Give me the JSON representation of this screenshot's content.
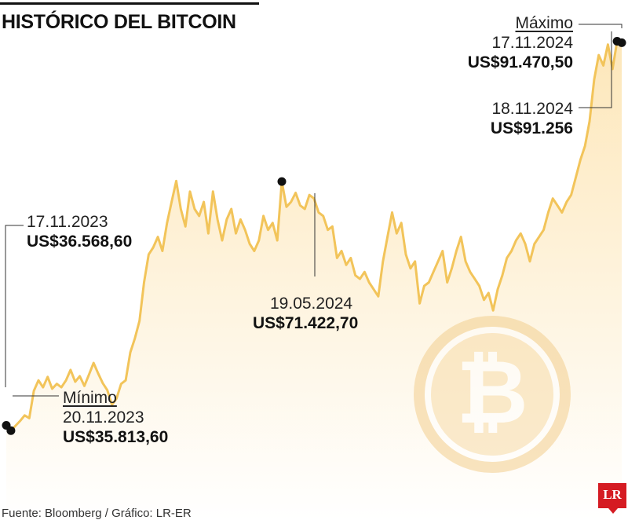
{
  "title": "HISTÓRICO DEL BITCOIN",
  "source": "Fuente: Bloomberg / Gráfico: LR-ER",
  "logo_text": "LR",
  "colors": {
    "line": "#f2c45a",
    "fill_top": "#fde7ba",
    "marker": "#111111",
    "watermark": "#f5d9a8",
    "logo": "#d51b22"
  },
  "icons": {
    "watermark": "bitcoin-icon"
  },
  "annotations": {
    "start": {
      "date": "17.11.2023",
      "value": "US$36.568,60"
    },
    "min": {
      "label": "Mínimo",
      "date": "20.11.2023",
      "value": "US$35.813,60"
    },
    "mid": {
      "date": "19.05.2024",
      "value": "US$71.422,70"
    },
    "max": {
      "label": "Máximo",
      "date": "17.11.2024",
      "value": "US$91.470,50"
    },
    "end": {
      "date": "18.11.2024",
      "value": "US$91.256"
    }
  },
  "chart_data": {
    "type": "area",
    "title": "HISTÓRICO DEL BITCOIN",
    "xlabel": "",
    "ylabel": "",
    "x_range": [
      "17.11.2023",
      "18.11.2024"
    ],
    "ylim": [
      30000,
      94000
    ],
    "grid": false,
    "series": [
      {
        "values": [
          36568.6,
          35813.6,
          36500,
          37200,
          38000,
          37600,
          41500,
          43000,
          42000,
          43500,
          41800,
          42500,
          42000,
          43000,
          44500,
          42800,
          43600,
          42200,
          43800,
          45500,
          44000,
          42600,
          41600,
          39500,
          40400,
          42500,
          43000,
          47000,
          49000,
          51500,
          57000,
          61000,
          62000,
          63500,
          61500,
          65500,
          68500,
          71500,
          67500,
          65000,
          70000,
          67500,
          66500,
          68500,
          64000,
          70000,
          66000,
          63000,
          66000,
          67500,
          64000,
          66000,
          64500,
          62500,
          61500,
          63000,
          66500,
          64500,
          65500,
          63000,
          71422.7,
          67800,
          68500,
          69800,
          68000,
          67500,
          69500,
          69000,
          67000,
          66500,
          64500,
          65000,
          60500,
          61500,
          59500,
          60500,
          58000,
          57500,
          58500,
          57000,
          56000,
          55000,
          60000,
          63500,
          67000,
          64000,
          65500,
          61000,
          59000,
          60000,
          54000,
          56500,
          57000,
          58500,
          60000,
          61500,
          57000,
          59000,
          61500,
          63500,
          60000,
          58500,
          57500,
          56500,
          54500,
          55500,
          53000,
          56000,
          58000,
          60500,
          61500,
          63000,
          64000,
          62500,
          60000,
          62500,
          63500,
          64500,
          67000,
          69000,
          68000,
          67000,
          68500,
          69500,
          72000,
          74500,
          76500,
          80000,
          86000,
          89500,
          88000,
          91000,
          87500,
          91470.5,
          91256
        ]
      }
    ]
  }
}
